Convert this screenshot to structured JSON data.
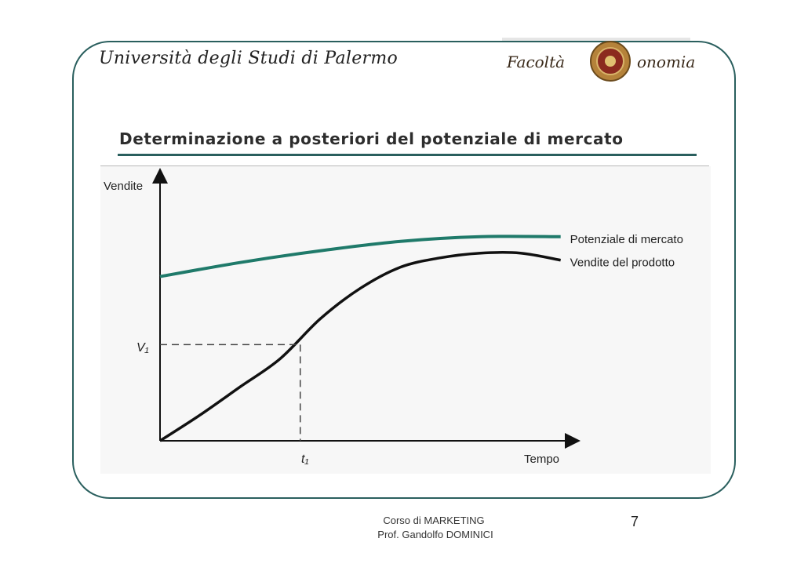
{
  "header": {
    "university": "Università degli Studi di Palermo",
    "faculty_logo_text": "Facoltà di Economia"
  },
  "slide": {
    "title": "Determinazione a posteriori del potenziale di mercato"
  },
  "colors": {
    "accent": "#2a5f5e",
    "potential_line": "#1f7a6a",
    "sales_line": "#111111"
  },
  "chart_data": {
    "type": "line",
    "ylabel": "Vendite",
    "xlabel": "Tempo",
    "y_marker_label": "V₁",
    "x_marker_label": "t₁",
    "series": [
      {
        "name": "Potenziale di mercato",
        "x": [
          0,
          2,
          4,
          6,
          8,
          10
        ],
        "y": [
          7.0,
          7.6,
          8.1,
          8.5,
          8.7,
          8.7
        ]
      },
      {
        "name": "Vendite del prodotto",
        "x": [
          0,
          1,
          2,
          3,
          4,
          5,
          6,
          7,
          8,
          9,
          10
        ],
        "y": [
          0,
          1.1,
          2.3,
          3.5,
          5.2,
          6.5,
          7.4,
          7.8,
          8.0,
          8.0,
          7.7
        ]
      }
    ],
    "marker_point": {
      "x": 3.5,
      "y": 4.1
    },
    "xlim": [
      0,
      10.3
    ],
    "ylim": [
      0,
      11.3
    ],
    "grid": false,
    "legend": "right, inline labels"
  },
  "footer": {
    "course": "Corso di MARKETING",
    "professor": "Prof. Gandolfo DOMINICI",
    "page": "7"
  }
}
